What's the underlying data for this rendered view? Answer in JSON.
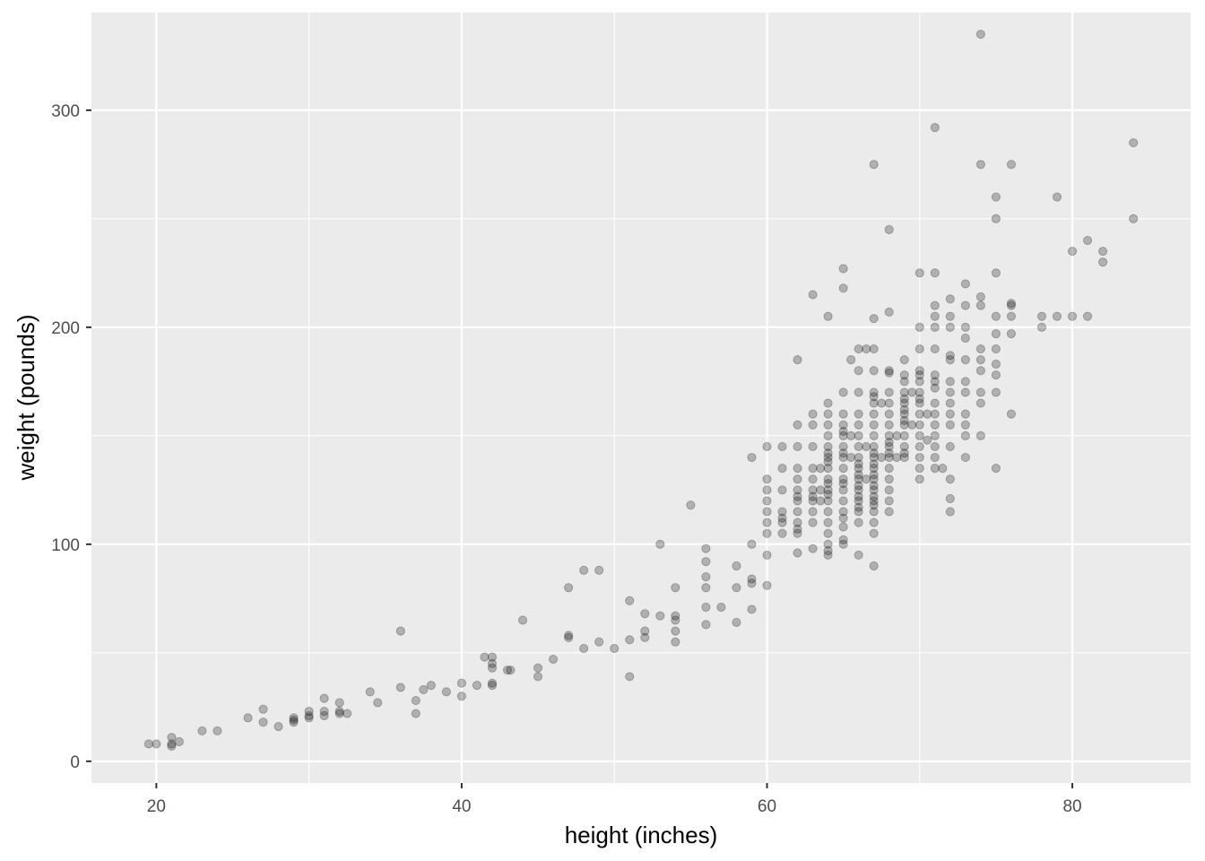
{
  "chart_data": {
    "type": "scatter",
    "title": "",
    "xlabel": "height (inches)",
    "ylabel": "weight (pounds)",
    "xlim": [
      15.75,
      87.75
    ],
    "ylim": [
      -10,
      345
    ],
    "x_ticks": [
      20,
      40,
      60,
      80
    ],
    "x_tick_labels": [
      "20",
      "40",
      "60",
      "80"
    ],
    "y_ticks": [
      0,
      100,
      200,
      300
    ],
    "y_tick_labels": [
      "0",
      "100",
      "200",
      "300"
    ],
    "grid": true,
    "legend": "none",
    "colors": {
      "panel_background": "#ebebeb",
      "grid_line": "#ffffff",
      "point_fill": "#000000",
      "point_opacity": 0.25
    },
    "points": [
      [
        19.5,
        8
      ],
      [
        20,
        8
      ],
      [
        21,
        11
      ],
      [
        21,
        8
      ],
      [
        21,
        7
      ],
      [
        21.5,
        9
      ],
      [
        23,
        14
      ],
      [
        24,
        14
      ],
      [
        26,
        20
      ],
      [
        27,
        24
      ],
      [
        27,
        18
      ],
      [
        28,
        16
      ],
      [
        29,
        20
      ],
      [
        29,
        19
      ],
      [
        29,
        18
      ],
      [
        30,
        23
      ],
      [
        30,
        21
      ],
      [
        30,
        20
      ],
      [
        31,
        29
      ],
      [
        31,
        23
      ],
      [
        31,
        21
      ],
      [
        32,
        27
      ],
      [
        32,
        23
      ],
      [
        32,
        22
      ],
      [
        32.5,
        22
      ],
      [
        34,
        32
      ],
      [
        34.5,
        27
      ],
      [
        36,
        60
      ],
      [
        36,
        34
      ],
      [
        37,
        28
      ],
      [
        37,
        22
      ],
      [
        37.5,
        33
      ],
      [
        38,
        35
      ],
      [
        39,
        32
      ],
      [
        40,
        36
      ],
      [
        40,
        30
      ],
      [
        41,
        35
      ],
      [
        41.5,
        48
      ],
      [
        42,
        48
      ],
      [
        42,
        45
      ],
      [
        42,
        43
      ],
      [
        42,
        36
      ],
      [
        42,
        35
      ],
      [
        43,
        42
      ],
      [
        43.2,
        42
      ],
      [
        44,
        65
      ],
      [
        45,
        43
      ],
      [
        45,
        39
      ],
      [
        46,
        47
      ],
      [
        47,
        80
      ],
      [
        47,
        58
      ],
      [
        47,
        57
      ],
      [
        48,
        88
      ],
      [
        48,
        52
      ],
      [
        49,
        88
      ],
      [
        49,
        55
      ],
      [
        50,
        52
      ],
      [
        51,
        74
      ],
      [
        51,
        56
      ],
      [
        51,
        39
      ],
      [
        52,
        68
      ],
      [
        52,
        60
      ],
      [
        52,
        57
      ],
      [
        53,
        100
      ],
      [
        53,
        67
      ],
      [
        54,
        80
      ],
      [
        54,
        67
      ],
      [
        54,
        65
      ],
      [
        54,
        60
      ],
      [
        54,
        55
      ],
      [
        55,
        118
      ],
      [
        56,
        98
      ],
      [
        56,
        92
      ],
      [
        56,
        85
      ],
      [
        56,
        80
      ],
      [
        56,
        71
      ],
      [
        56,
        63
      ],
      [
        57,
        71
      ],
      [
        58,
        90
      ],
      [
        58,
        80
      ],
      [
        58,
        64
      ],
      [
        59,
        140
      ],
      [
        59,
        100
      ],
      [
        59,
        84
      ],
      [
        59,
        82
      ],
      [
        59,
        70
      ],
      [
        60,
        145
      ],
      [
        60,
        130
      ],
      [
        60,
        125
      ],
      [
        60,
        120
      ],
      [
        60,
        115
      ],
      [
        60,
        110
      ],
      [
        60,
        105
      ],
      [
        60,
        95
      ],
      [
        60,
        81
      ],
      [
        61,
        145
      ],
      [
        61,
        135
      ],
      [
        61,
        125
      ],
      [
        61,
        115
      ],
      [
        61,
        112
      ],
      [
        61,
        110
      ],
      [
        61,
        105
      ],
      [
        62,
        185
      ],
      [
        62,
        155
      ],
      [
        62,
        145
      ],
      [
        62,
        135
      ],
      [
        62,
        130
      ],
      [
        62,
        125
      ],
      [
        62,
        122
      ],
      [
        62,
        120
      ],
      [
        62,
        115
      ],
      [
        62,
        110
      ],
      [
        62,
        107
      ],
      [
        62,
        105
      ],
      [
        62,
        96
      ],
      [
        63,
        215
      ],
      [
        63,
        160
      ],
      [
        63,
        155
      ],
      [
        63,
        145
      ],
      [
        63,
        135
      ],
      [
        63,
        130
      ],
      [
        63,
        125
      ],
      [
        63,
        122
      ],
      [
        63,
        120
      ],
      [
        63,
        115
      ],
      [
        63,
        110
      ],
      [
        63,
        98
      ],
      [
        63.5,
        135
      ],
      [
        63.5,
        125
      ],
      [
        63.5,
        120
      ],
      [
        64,
        205
      ],
      [
        64,
        165
      ],
      [
        64,
        160
      ],
      [
        64,
        155
      ],
      [
        64,
        150
      ],
      [
        64,
        145
      ],
      [
        64,
        142
      ],
      [
        64,
        140
      ],
      [
        64,
        138
      ],
      [
        64,
        135
      ],
      [
        64,
        130
      ],
      [
        64,
        128
      ],
      [
        64,
        125
      ],
      [
        64,
        123
      ],
      [
        64,
        120
      ],
      [
        64,
        115
      ],
      [
        64,
        110
      ],
      [
        64,
        105
      ],
      [
        64,
        100
      ],
      [
        64,
        97
      ],
      [
        64,
        95
      ],
      [
        65,
        227
      ],
      [
        65,
        218
      ],
      [
        65,
        170
      ],
      [
        65,
        160
      ],
      [
        65,
        155
      ],
      [
        65,
        152
      ],
      [
        65,
        150
      ],
      [
        65,
        145
      ],
      [
        65,
        142
      ],
      [
        65,
        140
      ],
      [
        65,
        135
      ],
      [
        65,
        130
      ],
      [
        65,
        128
      ],
      [
        65,
        125
      ],
      [
        65,
        120
      ],
      [
        65,
        115
      ],
      [
        65,
        112
      ],
      [
        65,
        108
      ],
      [
        65,
        102
      ],
      [
        65,
        100
      ],
      [
        65.5,
        185
      ],
      [
        65.5,
        150
      ],
      [
        65.5,
        140
      ],
      [
        66,
        190
      ],
      [
        66,
        180
      ],
      [
        66,
        170
      ],
      [
        66,
        160
      ],
      [
        66,
        155
      ],
      [
        66,
        150
      ],
      [
        66,
        145
      ],
      [
        66,
        140
      ],
      [
        66,
        137
      ],
      [
        66,
        135
      ],
      [
        66,
        132
      ],
      [
        66,
        130
      ],
      [
        66,
        127
      ],
      [
        66,
        125
      ],
      [
        66,
        122
      ],
      [
        66,
        120
      ],
      [
        66,
        117
      ],
      [
        66,
        115
      ],
      [
        66,
        110
      ],
      [
        66,
        95
      ],
      [
        66.5,
        190
      ],
      [
        66.5,
        145
      ],
      [
        66.5,
        130
      ],
      [
        67,
        275
      ],
      [
        67,
        204
      ],
      [
        67,
        190
      ],
      [
        67,
        180
      ],
      [
        67,
        170
      ],
      [
        67,
        168
      ],
      [
        67,
        165
      ],
      [
        67,
        160
      ],
      [
        67,
        155
      ],
      [
        67,
        150
      ],
      [
        67,
        145
      ],
      [
        67,
        142
      ],
      [
        67,
        140
      ],
      [
        67,
        137
      ],
      [
        67,
        135
      ],
      [
        67,
        132
      ],
      [
        67,
        130
      ],
      [
        67,
        127
      ],
      [
        67,
        125
      ],
      [
        67,
        122
      ],
      [
        67,
        120
      ],
      [
        67,
        118
      ],
      [
        67,
        115
      ],
      [
        67,
        110
      ],
      [
        67,
        105
      ],
      [
        67,
        90
      ],
      [
        67.5,
        165
      ],
      [
        67.5,
        140
      ],
      [
        68,
        245
      ],
      [
        68,
        207
      ],
      [
        68,
        180
      ],
      [
        68,
        179
      ],
      [
        68,
        170
      ],
      [
        68,
        165
      ],
      [
        68,
        160
      ],
      [
        68,
        155
      ],
      [
        68,
        150
      ],
      [
        68,
        147
      ],
      [
        68,
        145
      ],
      [
        68,
        142
      ],
      [
        68,
        140
      ],
      [
        68,
        135
      ],
      [
        68,
        130
      ],
      [
        68,
        125
      ],
      [
        68,
        120
      ],
      [
        68,
        115
      ],
      [
        68.5,
        150
      ],
      [
        68.5,
        140
      ],
      [
        69,
        185
      ],
      [
        69,
        178
      ],
      [
        69,
        175
      ],
      [
        69,
        170
      ],
      [
        69,
        167
      ],
      [
        69,
        165
      ],
      [
        69,
        162
      ],
      [
        69,
        160
      ],
      [
        69,
        157
      ],
      [
        69,
        155
      ],
      [
        69,
        150
      ],
      [
        69,
        145
      ],
      [
        69,
        142
      ],
      [
        69,
        140
      ],
      [
        69.5,
        170
      ],
      [
        69.5,
        155
      ],
      [
        70,
        225
      ],
      [
        70,
        200
      ],
      [
        70,
        190
      ],
      [
        70,
        180
      ],
      [
        70,
        178
      ],
      [
        70,
        175
      ],
      [
        70,
        170
      ],
      [
        70,
        167
      ],
      [
        70,
        165
      ],
      [
        70,
        160
      ],
      [
        70,
        155
      ],
      [
        70,
        150
      ],
      [
        70,
        145
      ],
      [
        70,
        140
      ],
      [
        70,
        135
      ],
      [
        70,
        130
      ],
      [
        70.5,
        160
      ],
      [
        70.5,
        148
      ],
      [
        71,
        292
      ],
      [
        71,
        225
      ],
      [
        71,
        210
      ],
      [
        71,
        205
      ],
      [
        71,
        200
      ],
      [
        71,
        190
      ],
      [
        71,
        178
      ],
      [
        71,
        175
      ],
      [
        71,
        172
      ],
      [
        71,
        165
      ],
      [
        71,
        160
      ],
      [
        71,
        155
      ],
      [
        71,
        150
      ],
      [
        71,
        145
      ],
      [
        71,
        140
      ],
      [
        71,
        135
      ],
      [
        71.5,
        135
      ],
      [
        72,
        213
      ],
      [
        72,
        205
      ],
      [
        72,
        200
      ],
      [
        72,
        187
      ],
      [
        72,
        185
      ],
      [
        72,
        175
      ],
      [
        72,
        170
      ],
      [
        72,
        165
      ],
      [
        72,
        160
      ],
      [
        72,
        155
      ],
      [
        72,
        145
      ],
      [
        72,
        130
      ],
      [
        72,
        121
      ],
      [
        72,
        115
      ],
      [
        73,
        220
      ],
      [
        73,
        210
      ],
      [
        73,
        200
      ],
      [
        73,
        195
      ],
      [
        73,
        185
      ],
      [
        73,
        175
      ],
      [
        73,
        170
      ],
      [
        73,
        160
      ],
      [
        73,
        155
      ],
      [
        73,
        150
      ],
      [
        73,
        140
      ],
      [
        74,
        335
      ],
      [
        74,
        275
      ],
      [
        74,
        214
      ],
      [
        74,
        210
      ],
      [
        74,
        190
      ],
      [
        74,
        185
      ],
      [
        74,
        180
      ],
      [
        74,
        170
      ],
      [
        74,
        165
      ],
      [
        74,
        150
      ],
      [
        75,
        260
      ],
      [
        75,
        250
      ],
      [
        75,
        225
      ],
      [
        75,
        205
      ],
      [
        75,
        197
      ],
      [
        75,
        190
      ],
      [
        75,
        183
      ],
      [
        75,
        178
      ],
      [
        75,
        170
      ],
      [
        75,
        135
      ],
      [
        76,
        275
      ],
      [
        76,
        211
      ],
      [
        76,
        210
      ],
      [
        76,
        205
      ],
      [
        76,
        197
      ],
      [
        76,
        160
      ],
      [
        78,
        205
      ],
      [
        78,
        200
      ],
      [
        79,
        260
      ],
      [
        79,
        205
      ],
      [
        80,
        235
      ],
      [
        80,
        205
      ],
      [
        81,
        240
      ],
      [
        81,
        205
      ],
      [
        82,
        235
      ],
      [
        82,
        230
      ],
      [
        84,
        285
      ],
      [
        84,
        250
      ]
    ]
  }
}
